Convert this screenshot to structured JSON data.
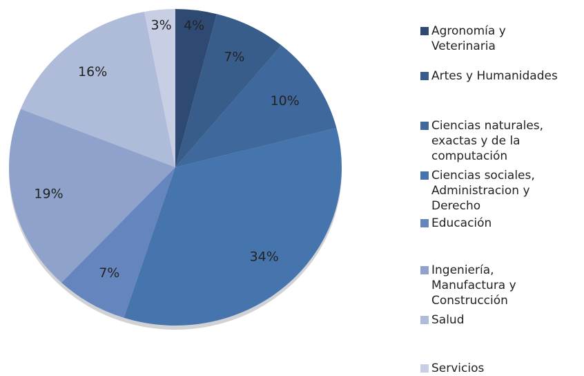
{
  "chart_data": {
    "type": "pie",
    "categories": [
      "Agronomía y Veterinaria",
      "Artes y Humanidades",
      "Ciencias naturales, exactas y de la computación",
      "Ciencias sociales, Administracion y Derecho",
      "Educación",
      "Ingeniería, Manufactura y Construcción",
      "Salud",
      "Servicios"
    ],
    "values": [
      4,
      7,
      10,
      34,
      7,
      19,
      16,
      3
    ],
    "value_labels": [
      "4%",
      "7%",
      "10%",
      "34%",
      "7%",
      "19%",
      "16%",
      "3%"
    ],
    "colors": [
      "#2e4a72",
      "#385d8a",
      "#3f689c",
      "#4674ad",
      "#6585bf",
      "#8fa2cb",
      "#aebbd9",
      "#c8cfe4"
    ],
    "legend": "right"
  }
}
